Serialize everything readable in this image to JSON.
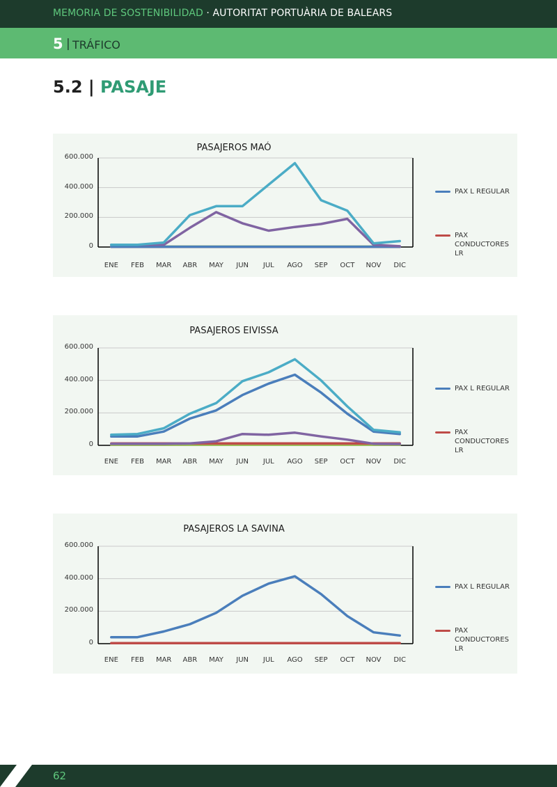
{
  "header": {
    "memoria": "MEMORIA DE SOSTENIBILIDAD",
    "sep": " · ",
    "authority": "AUTORITAT PORTUÀRIA DE BALEARS"
  },
  "section": {
    "number": "5",
    "divider": "|",
    "title": "TRÁFICO"
  },
  "subsection": {
    "number": "5.2 |",
    "title": "PASAJE"
  },
  "footer": {
    "page": "62"
  },
  "chart_data": [
    {
      "type": "line",
      "title": "PASAJEROS MAÓ",
      "categories": [
        "ENE",
        "FEB",
        "MAR",
        "ABR",
        "MAY",
        "JUN",
        "JUL",
        "AGO",
        "SEP",
        "OCT",
        "NOV",
        "DIC"
      ],
      "yticks": [
        "0",
        "200.000",
        "400.000",
        "600.000"
      ],
      "ylim": [
        0,
        600000
      ],
      "grid": true,
      "legend_position": "right",
      "legend": [
        {
          "label": "PAX L REGULAR",
          "color": "#4a7ebb"
        },
        {
          "label": "PAX CONDUCTORES LR",
          "color": "#be4b48"
        }
      ],
      "series": [
        {
          "color": "#4bacc6",
          "values": [
            15000,
            15000,
            30000,
            215000,
            275000,
            275000,
            420000,
            565000,
            315000,
            245000,
            25000,
            40000
          ]
        },
        {
          "color": "#8064a2",
          "values": [
            15000,
            15000,
            15000,
            130000,
            235000,
            160000,
            110000,
            135000,
            155000,
            190000,
            15000,
            5000
          ]
        },
        {
          "color": "#4a7ebb",
          "values": [
            2000,
            2000,
            2000,
            2000,
            2000,
            2000,
            2000,
            2000,
            2000,
            2000,
            2000,
            2000
          ]
        },
        {
          "color": "#be4b48",
          "values": [
            1000,
            1000,
            1000,
            1000,
            1000,
            1000,
            1000,
            1000,
            1000,
            1000,
            1000,
            1000
          ]
        },
        {
          "color": "#9bbb59",
          "values": [
            3000,
            3000,
            3000,
            3000,
            3000,
            3000,
            3000,
            3000,
            3000,
            3000,
            3000,
            3000
          ]
        }
      ]
    },
    {
      "type": "line",
      "title": "PASAJEROS EIVISSA",
      "categories": [
        "ENE",
        "FEB",
        "MAR",
        "ABR",
        "MAY",
        "JUN",
        "JUL",
        "AGO",
        "SEP",
        "OCT",
        "NOV",
        "DIC"
      ],
      "yticks": [
        "0",
        "200.000",
        "400.000",
        "600.000"
      ],
      "ylim": [
        0,
        600000
      ],
      "grid": true,
      "legend_position": "right",
      "legend": [
        {
          "label": "PAX L REGULAR",
          "color": "#4a7ebb"
        },
        {
          "label": "PAX CONDUCTORES LR",
          "color": "#be4b48"
        }
      ],
      "series": [
        {
          "color": "#4bacc6",
          "values": [
            65000,
            70000,
            105000,
            195000,
            260000,
            395000,
            450000,
            530000,
            400000,
            240000,
            95000,
            80000
          ]
        },
        {
          "color": "#4a7ebb",
          "values": [
            55000,
            55000,
            85000,
            165000,
            215000,
            310000,
            380000,
            435000,
            325000,
            195000,
            85000,
            70000
          ]
        },
        {
          "color": "#8064a2",
          "values": [
            10000,
            10000,
            10000,
            12000,
            25000,
            70000,
            65000,
            78000,
            55000,
            35000,
            10000,
            8000
          ]
        },
        {
          "color": "#be4b48",
          "values": [
            12000,
            12000,
            12000,
            12000,
            12000,
            12000,
            12000,
            12000,
            12000,
            12000,
            12000,
            12000
          ]
        },
        {
          "color": "#9bbb59",
          "values": [
            3000,
            3000,
            3000,
            3000,
            3000,
            3000,
            3000,
            3000,
            3000,
            3000,
            3000,
            3000
          ]
        }
      ]
    },
    {
      "type": "line",
      "title": "PASAJEROS LA SAVINA",
      "categories": [
        "ENE",
        "FEB",
        "MAR",
        "ABR",
        "MAY",
        "JUN",
        "JUL",
        "AGO",
        "SEP",
        "OCT",
        "NOV",
        "DIC"
      ],
      "yticks": [
        "0",
        "200.000",
        "400.000",
        "600.000"
      ],
      "ylim": [
        0,
        600000
      ],
      "grid": true,
      "legend_position": "right",
      "legend": [
        {
          "label": "PAX L REGULAR",
          "color": "#4a7ebb"
        },
        {
          "label": "PAX CONDUCTORES LR",
          "color": "#be4b48"
        }
      ],
      "series": [
        {
          "color": "#4a7ebb",
          "values": [
            40000,
            40000,
            75000,
            120000,
            190000,
            295000,
            370000,
            415000,
            305000,
            170000,
            70000,
            50000
          ]
        },
        {
          "color": "#be4b48",
          "values": [
            3000,
            3000,
            3000,
            3000,
            3000,
            3000,
            3000,
            3000,
            3000,
            3000,
            3000,
            3000
          ]
        }
      ]
    }
  ]
}
